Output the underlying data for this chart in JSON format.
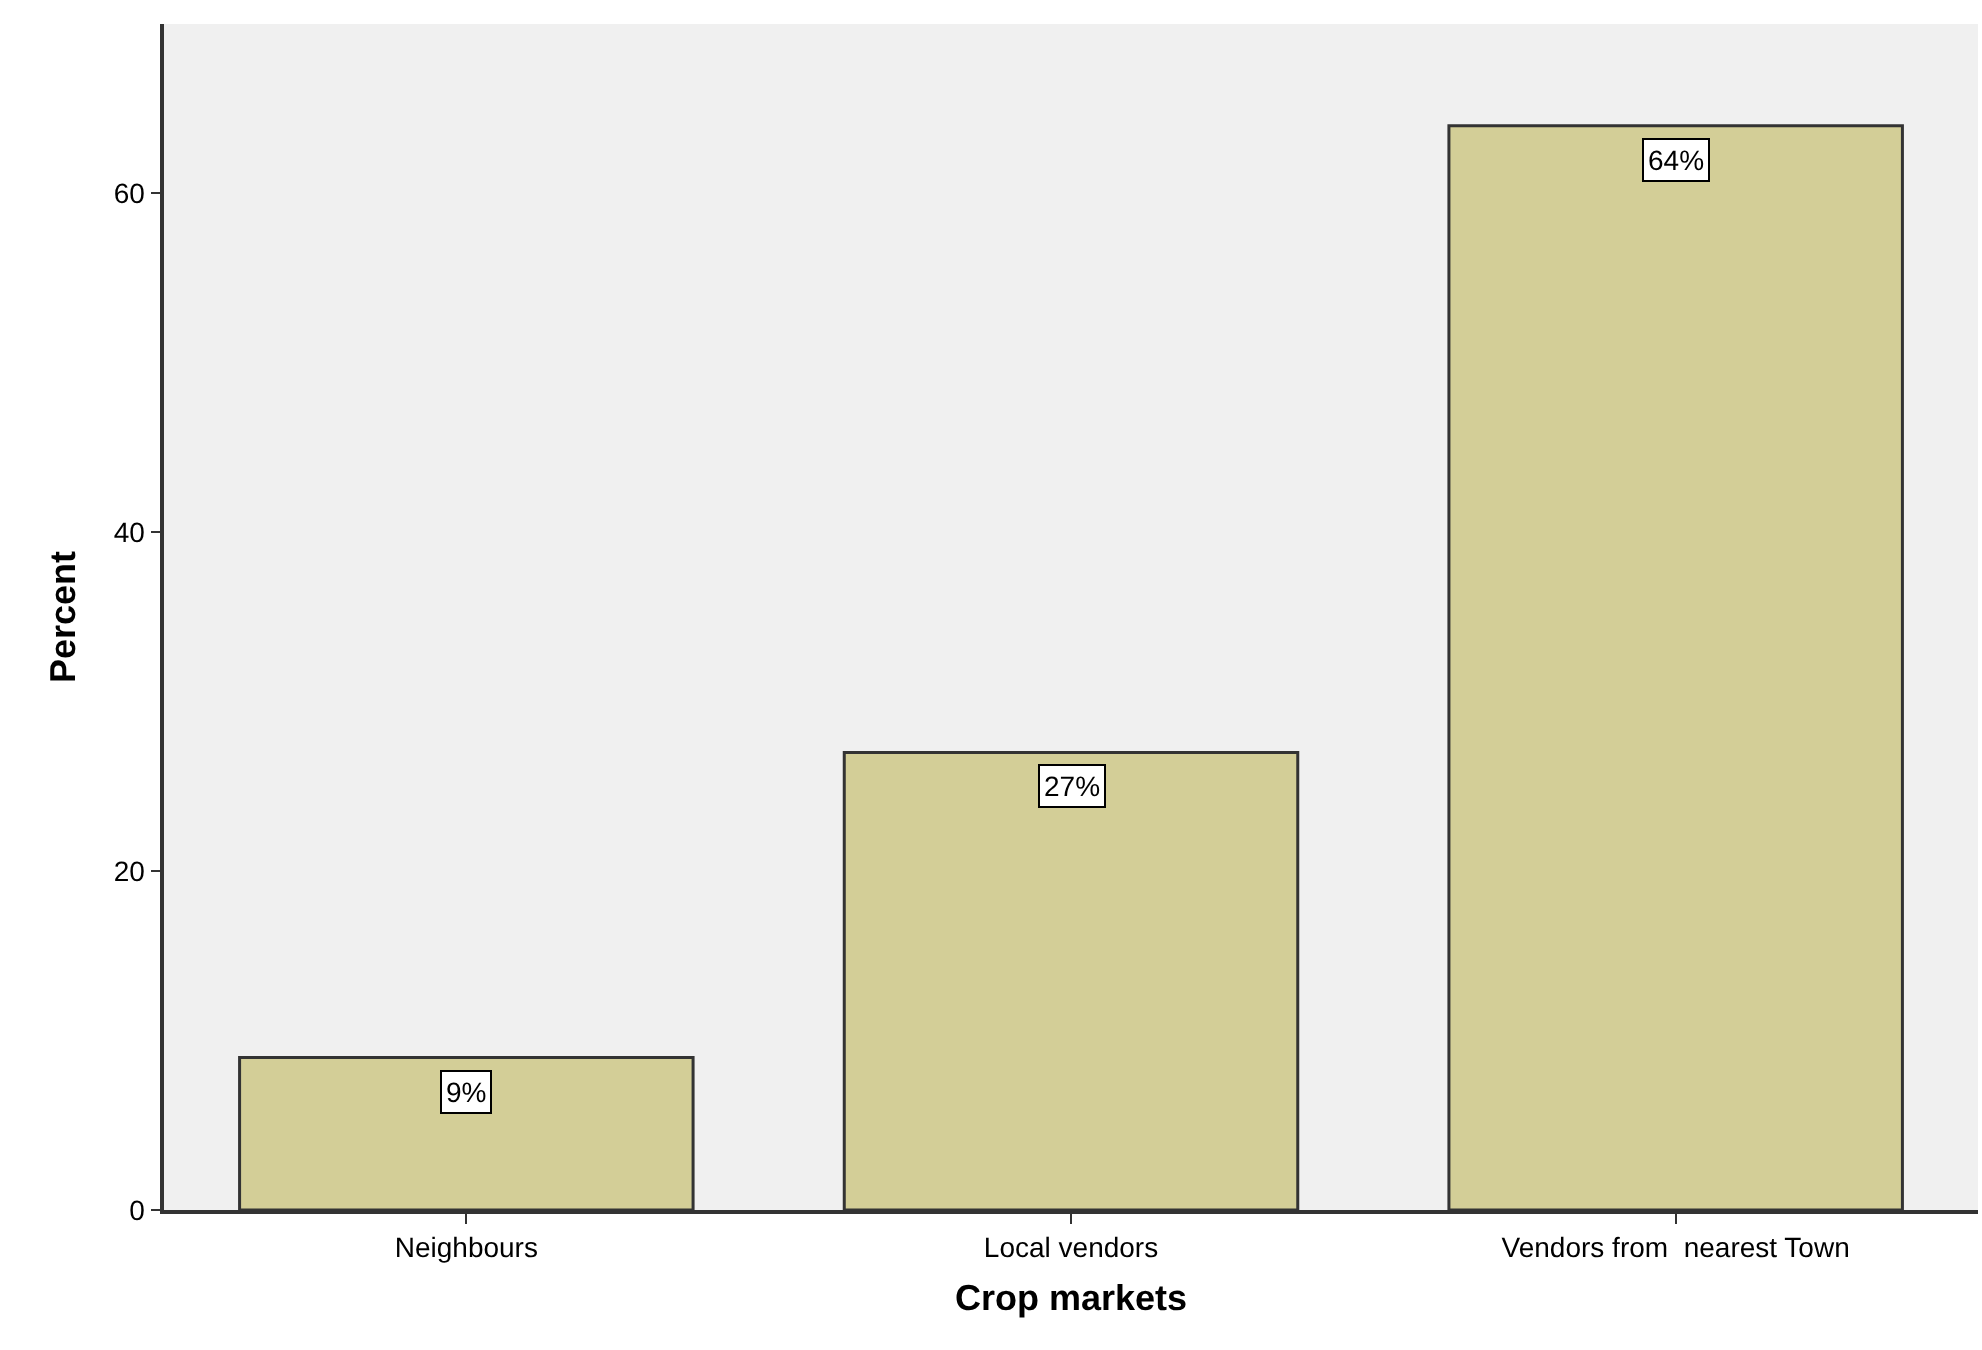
{
  "chart_data": {
    "type": "bar",
    "xlabel": "Crop markets",
    "ylabel": "Percent",
    "categories": [
      "Neighbours",
      "Local vendors",
      "Vendors from  nearest Town"
    ],
    "values": [
      9,
      27,
      64
    ],
    "value_labels": [
      "9%",
      "27%",
      "64%"
    ],
    "color": "#d3ce97",
    "ylim": [
      0,
      70
    ],
    "yticks": [
      0,
      20,
      40,
      60
    ],
    "grid": false
  }
}
